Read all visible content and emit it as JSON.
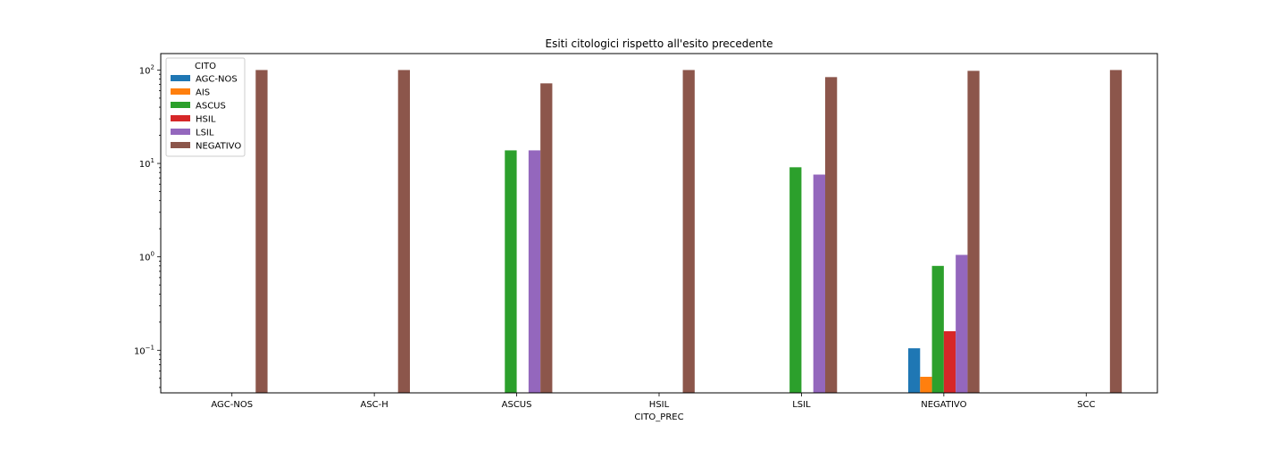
{
  "chart_data": {
    "type": "bar",
    "title": "Esiti citologici rispetto all'esito precedente",
    "xlabel": "CITO_PREC",
    "ylabel": "",
    "yscale": "log",
    "ylim": [
      0.035,
      150
    ],
    "ytick_values": [
      0.1,
      1,
      10,
      100
    ],
    "ytick_mantissa": [
      "10",
      "10",
      "10",
      "10"
    ],
    "ytick_exponents": [
      "−1",
      "0",
      "1",
      "2"
    ],
    "categories": [
      "AGC-NOS",
      "ASC-H",
      "ASCUS",
      "HSIL",
      "LSIL",
      "NEGATIVO",
      "SCC"
    ],
    "legend_title": "CITO",
    "legend_position": "top-left",
    "series": [
      {
        "name": "AGC-NOS",
        "color": "#1f77b4",
        "values": [
          null,
          null,
          null,
          null,
          null,
          0.105,
          null
        ]
      },
      {
        "name": "AIS",
        "color": "#ff7f0e",
        "values": [
          null,
          null,
          null,
          null,
          null,
          0.052,
          null
        ]
      },
      {
        "name": "ASCUS",
        "color": "#2ca02c",
        "values": [
          null,
          null,
          13.8,
          null,
          9.1,
          0.8,
          null
        ]
      },
      {
        "name": "HSIL",
        "color": "#d62728",
        "values": [
          null,
          null,
          null,
          null,
          null,
          0.16,
          null
        ]
      },
      {
        "name": "LSIL",
        "color": "#9467bd",
        "values": [
          null,
          null,
          13.8,
          null,
          7.6,
          1.05,
          null
        ]
      },
      {
        "name": "NEGATIVO",
        "color": "#8c564b",
        "values": [
          100,
          100,
          72,
          100,
          84,
          98,
          100
        ]
      }
    ]
  }
}
